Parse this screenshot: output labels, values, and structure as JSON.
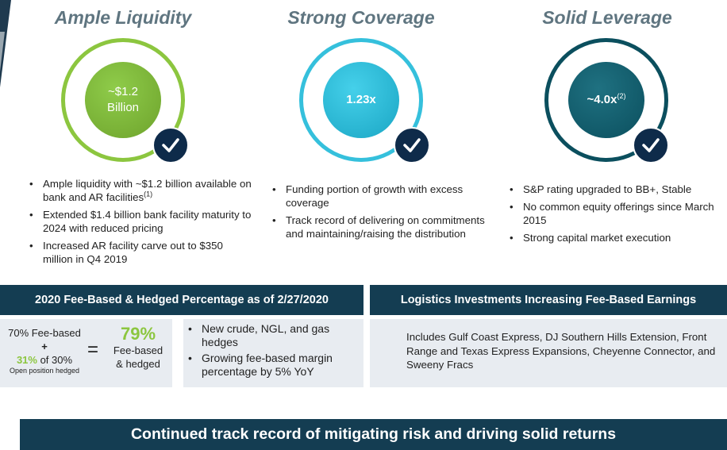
{
  "colors": {
    "navy": "#143d52",
    "green": "#8cc63f",
    "cyan": "#35c0dc",
    "teal": "#0b4f5e",
    "title_gray": "#5f7580",
    "panel_bg": "#e8ecf1"
  },
  "columns": [
    {
      "title": "Ample Liquidity",
      "circle_value": "~$1.2",
      "circle_value_line2": "Billion",
      "icon": "checkmark-icon",
      "bullets": [
        {
          "text": "Ample liquidity with ~$1.2 billion available on bank and AR facilities",
          "sup": "(1)"
        },
        {
          "text": "Extended $1.4 billion bank facility maturity to 2024 with reduced pricing"
        },
        {
          "text": "Increased AR facility carve out to $350 million in Q4 2019"
        }
      ]
    },
    {
      "title": "Strong Coverage",
      "circle_value": "1.23x",
      "icon": "checkmark-icon",
      "bullets": [
        {
          "text": "Funding portion of growth with excess coverage"
        },
        {
          "text": "Track record of delivering on commitments and maintaining/raising the distribution"
        }
      ]
    },
    {
      "title": "Solid Leverage",
      "circle_value": "~4.0x",
      "circle_sup": "(2)",
      "icon": "checkmark-icon",
      "bullets": [
        {
          "text": "S&P rating upgraded to BB+, Stable"
        },
        {
          "text": "No common equity offerings since March 2015"
        },
        {
          "text": "Strong capital market execution"
        }
      ]
    }
  ],
  "fee_section": {
    "header": "2020 Fee-Based & Hedged Percentage as of 2/27/2020",
    "left_line1": "70% Fee-based",
    "plus": "+",
    "left_pct": "31%",
    "left_line3": " of 30%",
    "left_line4": "Open position hedged",
    "equals": "=",
    "result_pct": "79%",
    "result_line1": "Fee-based",
    "result_line2": "& hedged",
    "bullets": [
      "New crude, NGL, and gas hedges",
      "Growing fee-based margin percentage by 5% YoY"
    ]
  },
  "logistics_section": {
    "header": "Logistics Investments Increasing Fee-Based Earnings",
    "body": "Includes Gulf Coast Express, DJ Southern Hills Extension, Front Range and Texas Express Expansions, Cheyenne Connector, and Sweeny Fracs"
  },
  "footer_banner": "Continued track record of mitigating risk and driving solid returns"
}
